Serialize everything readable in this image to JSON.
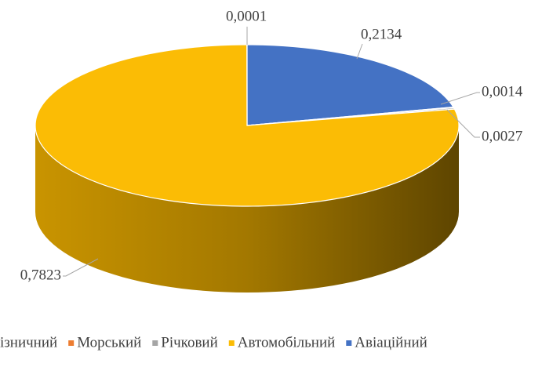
{
  "chart_data": {
    "type": "pie",
    "categories": [
      "ізничний",
      "Морський",
      "Річковий",
      "Автомобільний",
      "Авіаційний"
    ],
    "values": [
      0.0001,
      0.0014,
      0.0027,
      0.7823,
      0.2134
    ],
    "value_labels": [
      "0,0001",
      "0,0014",
      "0,0027",
      "0,7823",
      "0,2134"
    ],
    "colors": [
      "#4472c4",
      "#ed7d31",
      "#a5a5a5",
      "#fbbc05",
      "#4472c4"
    ]
  }
}
